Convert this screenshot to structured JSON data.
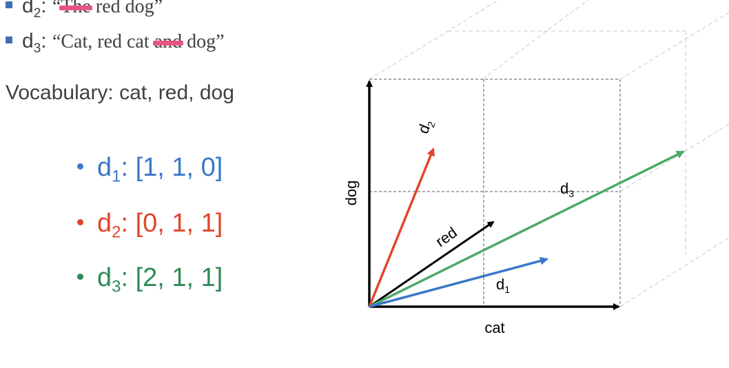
{
  "documents": [
    {
      "label": "d",
      "sub": "2",
      "sep": ": ",
      "text_before": "“",
      "struck": "The",
      "text_after": " red dog”"
    },
    {
      "label": "d",
      "sub": "3",
      "sep": ": ",
      "text_before": "“Cat, red cat ",
      "struck": "and",
      "text_after": " dog”"
    }
  ],
  "vocabulary": "Vocabulary: cat, red, dog",
  "vectors": [
    {
      "label": "d",
      "sub": "1",
      "value": ": [1, 1, 0]",
      "color": "#3a77c8"
    },
    {
      "label": "d",
      "sub": "2",
      "value": ": [0, 1, 1]",
      "color": "#e0452b"
    },
    {
      "label": "d",
      "sub": "3",
      "value": ": [2, 1, 1]",
      "color": "#2e8a55"
    }
  ],
  "diagram": {
    "axes": {
      "x": "cat",
      "y": "dog",
      "z": "red"
    },
    "arrow_labels": {
      "d1": "d",
      "d1_sub": "1",
      "d2": "d",
      "d2_sub": "2",
      "d3": "d",
      "d3_sub": "3"
    },
    "colors": {
      "d1": "#3a77c8",
      "d2": "#e0452b",
      "d3": "#4caa6a",
      "axis": "#000000",
      "grid": "#555555",
      "perspective": "#c8c8c8"
    }
  }
}
